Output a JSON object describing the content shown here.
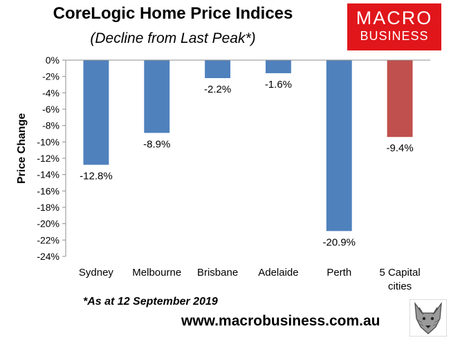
{
  "title": "CoreLogic Home Price Indices",
  "subtitle": "(Decline from Last Peak*)",
  "logo": {
    "line1": "MACRO",
    "line2": "BUSINESS"
  },
  "footnote": "*As at 12 September 2019",
  "url": "www.macrobusiness.com.au",
  "wolf_icon": "wolf-icon",
  "colors": {
    "series": "#4f81bd",
    "highlight": "#c0504d",
    "logo": "#e0161b"
  },
  "chart_data": {
    "type": "bar",
    "title": "CoreLogic Home Price Indices",
    "subtitle": "(Decline from Last Peak*)",
    "xlabel": "",
    "ylabel": "Price Change",
    "ylim": [
      -24,
      0
    ],
    "yticks": [
      0,
      -2,
      -4,
      -6,
      -8,
      -10,
      -12,
      -14,
      -16,
      -18,
      -20,
      -22,
      -24
    ],
    "ytick_labels": [
      "0%",
      "-2%",
      "-4%",
      "-6%",
      "-8%",
      "-10%",
      "-12%",
      "-14%",
      "-16%",
      "-18%",
      "-20%",
      "-22%",
      "-24%"
    ],
    "categories": [
      "Sydney",
      "Melbourne",
      "Brisbane",
      "Adelaide",
      "Perth",
      "5 Capital cities"
    ],
    "category_lines": [
      [
        "Sydney"
      ],
      [
        "Melbourne"
      ],
      [
        "Brisbane"
      ],
      [
        "Adelaide"
      ],
      [
        "Perth"
      ],
      [
        "5 Capital",
        "cities"
      ]
    ],
    "values": [
      -12.8,
      -8.9,
      -2.2,
      -1.6,
      -20.9,
      -9.4
    ],
    "data_labels": [
      "-12.8%",
      "-8.9%",
      "-2.2%",
      "-1.6%",
      "-20.9%",
      "-9.4%"
    ],
    "bar_colors": [
      "#4f81bd",
      "#4f81bd",
      "#4f81bd",
      "#4f81bd",
      "#4f81bd",
      "#c0504d"
    ],
    "grid": false,
    "legend": "none"
  }
}
